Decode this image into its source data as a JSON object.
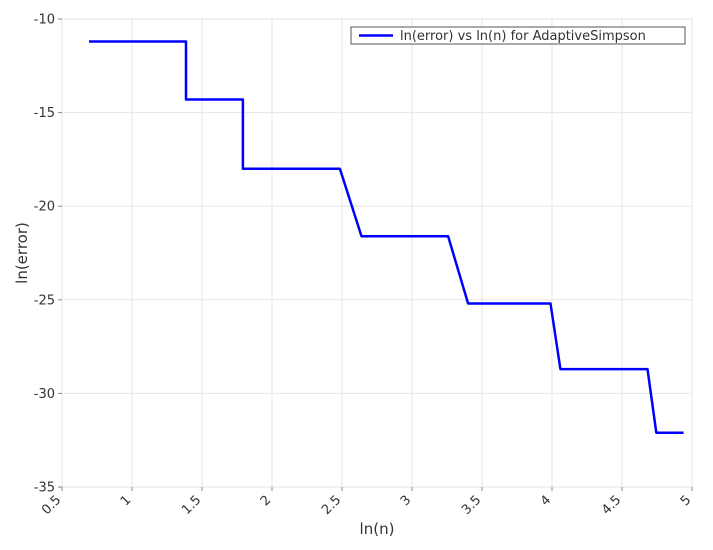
{
  "chart_data": {
    "type": "line",
    "title": "",
    "xlabel": "ln(n)",
    "ylabel": "ln(error)",
    "xlim": [
      0.5,
      5
    ],
    "ylim": [
      -35,
      -10
    ],
    "x_ticks": [
      0.5,
      1,
      1.5,
      2,
      2.5,
      3,
      3.5,
      4,
      4.5,
      5
    ],
    "x_tick_labels": [
      "0.5",
      "1",
      "1.5",
      "2",
      "2.5",
      "3",
      "3.5",
      "4",
      "4.5",
      "5"
    ],
    "y_ticks": [
      -10,
      -15,
      -20,
      -25,
      -30,
      -35
    ],
    "y_tick_labels": [
      "-10",
      "-15",
      "-20",
      "-25",
      "-30",
      "-35"
    ],
    "grid": true,
    "legend_position": "top-right",
    "series": [
      {
        "name": "ln(error) vs ln(n) for AdaptiveSimpson",
        "color": "#0000ff",
        "x": [
          0.693,
          1.386,
          1.386,
          1.792,
          1.792,
          2.485,
          2.639,
          3.258,
          3.401,
          3.989,
          4.06,
          4.682,
          4.745,
          4.94
        ],
        "y": [
          -11.2,
          -11.2,
          -14.3,
          -14.3,
          -18.0,
          -18.0,
          -21.6,
          -21.6,
          -25.2,
          -25.2,
          -28.7,
          -28.7,
          -32.1,
          -32.1
        ]
      }
    ]
  }
}
